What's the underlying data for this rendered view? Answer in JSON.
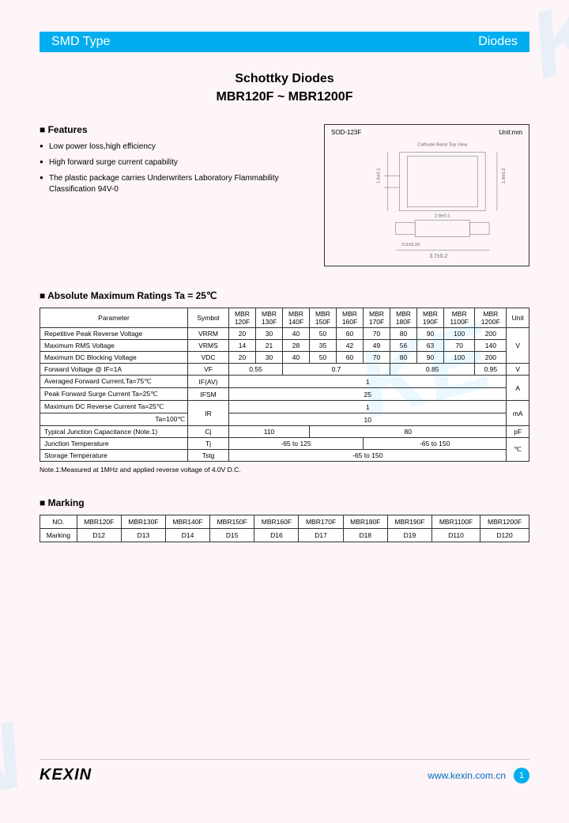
{
  "header": {
    "left": "SMD Type",
    "right": "Diodes"
  },
  "title": "Schottky Diodes",
  "subtitle": "MBR120F ~ MBR1200F",
  "features": {
    "title": "■ Features",
    "items": [
      "Low power loss,high efficiency",
      "High forward surge current capability",
      "The plastic package carries Underwriters Laboratory Flammability Classification 94V-0"
    ]
  },
  "package": {
    "name": "SOD-123F",
    "unit": "Unit:mm"
  },
  "ratings": {
    "title": "■ Absolute Maximum Ratings Ta = 25℃",
    "cols": [
      "Parameter",
      "Symbol",
      "MBR 120F",
      "MBR 130F",
      "MBR 140F",
      "MBR 150F",
      "MBR 160F",
      "MBR 170F",
      "MBR 180F",
      "MBR 190F",
      "MBR 1100F",
      "MBR 1200F",
      "Unit"
    ],
    "rows": [
      {
        "p": "Repetitive Peak Reverse Voltage",
        "s": "VRRM",
        "v": [
          "20",
          "30",
          "40",
          "50",
          "60",
          "70",
          "80",
          "90",
          "100",
          "200"
        ],
        "u": "V",
        "uspan": 3
      },
      {
        "p": "Maximum RMS Voltage",
        "s": "VRMS",
        "v": [
          "14",
          "21",
          "28",
          "35",
          "42",
          "49",
          "56",
          "63",
          "70",
          "140"
        ]
      },
      {
        "p": "Maximum DC Blocking Voltage",
        "s": "VDC",
        "v": [
          "20",
          "30",
          "40",
          "50",
          "60",
          "70",
          "80",
          "90",
          "100",
          "200"
        ]
      },
      {
        "p": "Forward Voltage @ IF=1A",
        "s": "VF",
        "merged": [
          {
            "span": 2,
            "val": "0.55"
          },
          {
            "span": 4,
            "val": "0.7"
          },
          {
            "span": 3,
            "val": "0.85"
          },
          {
            "span": 1,
            "val": "0.95"
          }
        ],
        "u": "V"
      },
      {
        "p": "Averaged Forward Current,Ta=75℃",
        "s": "IF(AV)",
        "full": "1",
        "u": "A",
        "uspan": 2
      },
      {
        "p": "Peak Forward Surge Current Ta=25℃",
        "s": "IFSM",
        "full": "25"
      },
      {
        "p": "Maximum DC Reverse Current  Ta=25℃",
        "s": "IR",
        "sspan": 2,
        "full": "1",
        "u": "mA",
        "uspan": 2
      },
      {
        "p": "Ta=100℃",
        "indent": true,
        "full": "10"
      },
      {
        "p": "Typical Junction Capacitance (Note.1)",
        "s": "Cj",
        "merged": [
          {
            "span": 3,
            "val": "110"
          },
          {
            "span": 7,
            "val": "80"
          }
        ],
        "u": "pF"
      },
      {
        "p": "Junction Temperature",
        "s": "Tj",
        "merged": [
          {
            "span": 5,
            "val": "-65 to 125"
          },
          {
            "span": 5,
            "val": "-65 to 150"
          }
        ],
        "u": "℃",
        "uspan": 2
      },
      {
        "p": "Storage Temperature",
        "s": "Tstg",
        "full": "-65 to 150"
      }
    ],
    "note": "Note.1:Measured at 1MHz and applied reverse voltage of 4.0V D.C."
  },
  "marking": {
    "title": "■ Marking",
    "head": [
      "NO.",
      "MBR120F",
      "MBR130F",
      "MBR140F",
      "MBR150F",
      "MBR160F",
      "MBR170F",
      "MBR180F",
      "MBR190F",
      "MBR1100F",
      "MBR1200F"
    ],
    "row": [
      "Marking",
      "D12",
      "D13",
      "D14",
      "D15",
      "D16",
      "D17",
      "D18",
      "D19",
      "D110",
      "D120"
    ]
  },
  "footer": {
    "logo": "KEXIN",
    "url": "www.kexin.com.cn",
    "page": "1"
  }
}
